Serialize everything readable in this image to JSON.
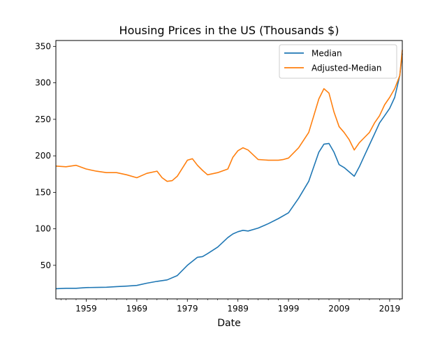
{
  "chart_data": {
    "type": "line",
    "title": "Housing Prices in the US (Thousands $)",
    "xlabel": "Date",
    "ylabel": "",
    "xlim": [
      1953,
      2021.5
    ],
    "ylim": [
      4,
      358
    ],
    "x_ticks": [
      1959,
      1969,
      1979,
      1989,
      1999,
      2009,
      2019
    ],
    "x_tick_labels": [
      "1959",
      "1969",
      "1979",
      "1989",
      "1999",
      "2009",
      "2019"
    ],
    "y_ticks": [
      50,
      100,
      150,
      200,
      250,
      300,
      350
    ],
    "y_tick_labels": [
      "50",
      "100",
      "150",
      "200",
      "250",
      "300",
      "350"
    ],
    "grid": false,
    "legend_position": "top-right",
    "series": [
      {
        "name": "Median",
        "color": "#1f77b4",
        "x": [
          1953,
          1955,
          1957,
          1959,
          1961,
          1963,
          1965,
          1967,
          1969,
          1971,
          1973,
          1975,
          1977,
          1979,
          1981,
          1982,
          1983,
          1985,
          1987,
          1988,
          1989,
          1990,
          1991,
          1993,
          1995,
          1997,
          1999,
          2001,
          2003,
          2005,
          2006,
          2007,
          2008,
          2009,
          2010,
          2011,
          2012,
          2013,
          2014,
          2015,
          2016,
          2017,
          2018,
          2019,
          2020,
          2021,
          2021.5
        ],
        "y": [
          18,
          18.5,
          18.5,
          19.5,
          19.7,
          20,
          20.8,
          21.5,
          22.5,
          25.5,
          28,
          30,
          36,
          50,
          61,
          62,
          66,
          75,
          88,
          93,
          96,
          98,
          97,
          101,
          107,
          114,
          122,
          142,
          165,
          205,
          216,
          217,
          205,
          188,
          184,
          178,
          172,
          185,
          200,
          215,
          230,
          245,
          255,
          265,
          280,
          310,
          340
        ]
      },
      {
        "name": "Adjusted-Median",
        "color": "#ff7f0e",
        "x": [
          1953,
          1955,
          1957,
          1959,
          1961,
          1963,
          1965,
          1967,
          1969,
          1971,
          1973,
          1974,
          1975,
          1976,
          1977,
          1979,
          1980,
          1981,
          1982,
          1983,
          1985,
          1987,
          1988,
          1989,
          1990,
          1991,
          1993,
          1995,
          1997,
          1998,
          1999,
          2001,
          2003,
          2004,
          2005,
          2006,
          2007,
          2008,
          2009,
          2010,
          2011,
          2012,
          2013,
          2014,
          2015,
          2016,
          2017,
          2018,
          2019,
          2020,
          2021,
          2021.5
        ],
        "y": [
          186,
          185,
          187,
          182,
          179,
          177,
          177,
          174,
          170,
          176,
          179,
          170,
          165,
          166,
          172,
          194,
          196,
          187,
          180,
          174,
          177,
          182,
          198,
          207,
          211,
          208,
          195,
          194,
          194,
          195,
          197,
          211,
          232,
          255,
          278,
          292,
          286,
          260,
          240,
          232,
          222,
          208,
          218,
          225,
          232,
          245,
          255,
          270,
          280,
          292,
          310,
          345
        ]
      }
    ]
  }
}
